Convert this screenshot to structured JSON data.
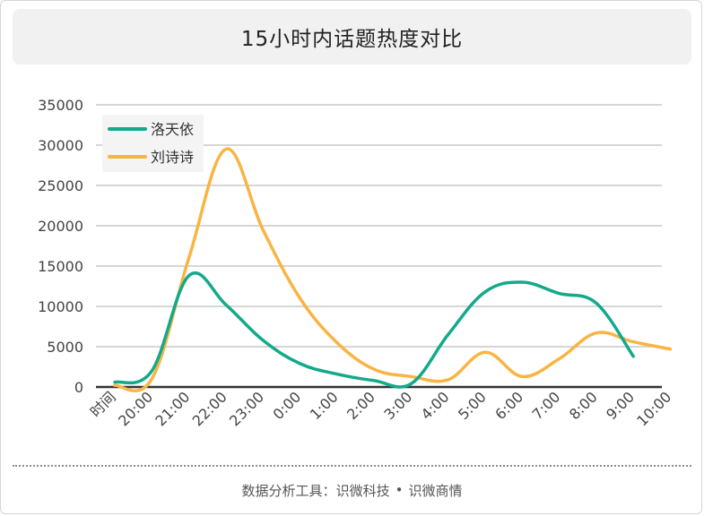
{
  "title": "15小时内话题热度对比",
  "footer": {
    "prefix": "数据分析工具：",
    "brand1": "识微科技",
    "separator": "•",
    "brand2": "识微商情"
  },
  "chart_data": {
    "type": "line",
    "title": "15小时内话题热度对比",
    "xlabel": "",
    "ylabel": "",
    "ylim": [
      0,
      35000
    ],
    "yticks": [
      0,
      5000,
      10000,
      15000,
      20000,
      25000,
      30000,
      35000
    ],
    "categories": [
      "时间",
      "20:00",
      "21:00",
      "22:00",
      "23:00",
      "0:00",
      "1:00",
      "2:00",
      "3:00",
      "4:00",
      "5:00",
      "6:00",
      "7:00",
      "8:00",
      "9:00",
      "10:00"
    ],
    "grid": true,
    "legend": "top-left",
    "smooth": true,
    "series": [
      {
        "name": "洛天依",
        "color": "#13a98a",
        "values": [
          600,
          2000,
          13800,
          10200,
          5800,
          2900,
          1600,
          800,
          400,
          6500,
          11800,
          13000,
          11600,
          10400,
          3800,
          null
        ]
      },
      {
        "name": "刘诗诗",
        "color": "#f9b443",
        "values": [
          200,
          1000,
          16000,
          29500,
          19500,
          11000,
          5500,
          2200,
          1300,
          900,
          4300,
          1300,
          3500,
          6700,
          5600,
          4700
        ]
      }
    ]
  }
}
